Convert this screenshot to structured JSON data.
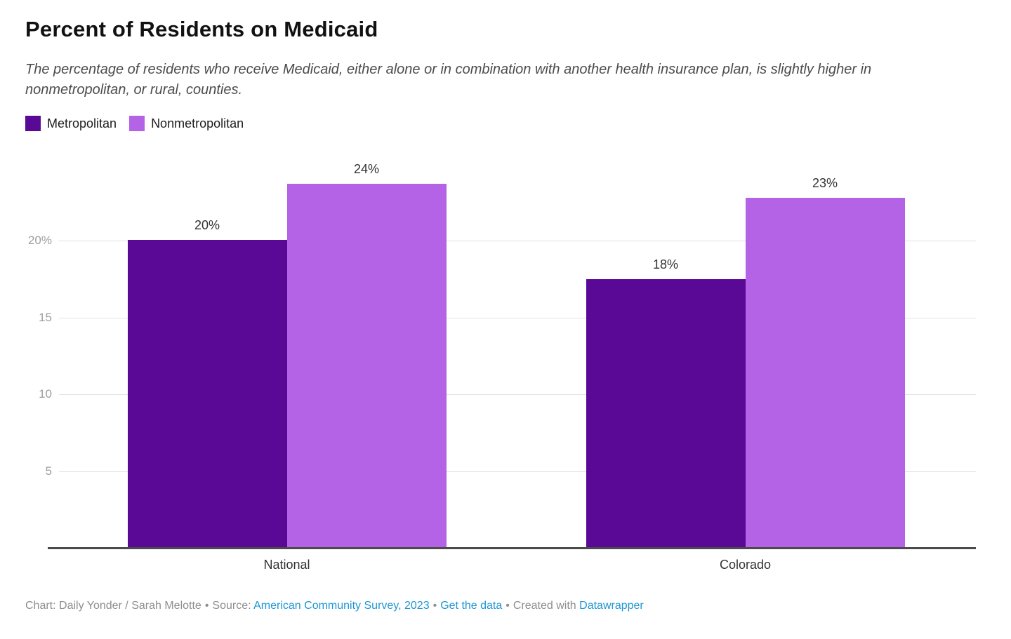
{
  "header": {
    "title": "Percent of Residents on Medicaid",
    "subtitle": "The percentage of residents who receive Medicaid, either alone or in combination with another health insurance plan, is slightly higher in nonmetropolitan, or rural, counties."
  },
  "legend": {
    "items": [
      {
        "label": "Metropolitan",
        "color": "#5a0996"
      },
      {
        "label": "Nonmetropolitan",
        "color": "#b462e6"
      }
    ]
  },
  "chart_data": {
    "type": "bar",
    "categories": [
      "National",
      "Colorado"
    ],
    "series": [
      {
        "name": "Metropolitan",
        "color": "#5a0996",
        "values": [
          20,
          18
        ],
        "labels": [
          "20%",
          "18%"
        ],
        "plot_values": [
          20.05,
          17.5
        ]
      },
      {
        "name": "Nonmetropolitan",
        "color": "#b462e6",
        "values": [
          24,
          23
        ],
        "labels": [
          "24%",
          "23%"
        ],
        "plot_values": [
          23.7,
          22.8
        ]
      }
    ],
    "title": "Percent of Residents on Medicaid",
    "xlabel": "",
    "ylabel": "",
    "ylim": [
      0,
      26
    ],
    "yticks": [
      {
        "value": 5,
        "label": "5"
      },
      {
        "value": 10,
        "label": "10"
      },
      {
        "value": 15,
        "label": "15"
      },
      {
        "value": 20,
        "label": "20%"
      }
    ],
    "grid": true,
    "legend_position": "top-left",
    "colors": {
      "gridline": "#e2e2e2",
      "baseline": "#4b4b4b",
      "tick_label": "#9e9e9e",
      "value_label": "#333333"
    }
  },
  "footer": {
    "credit": "Chart: Daily Yonder / Sarah Melotte",
    "sep": "•",
    "source_prefix": "Source:",
    "source_link": "American Community Survey, 2023",
    "get_data_link": "Get the data",
    "created_with": "Created with",
    "datawrapper_link": "Datawrapper",
    "link_color": "#1e96d3"
  }
}
